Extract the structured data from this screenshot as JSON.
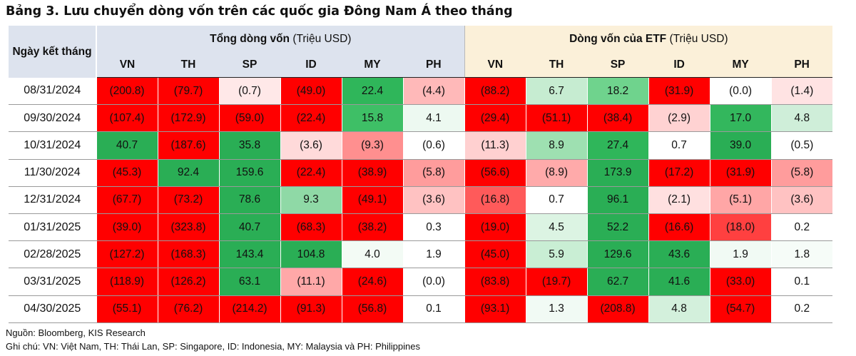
{
  "title": "Bảng 3. Lưu chuyển dòng vốn trên các quốc gia Đông Nam Á theo tháng",
  "header": {
    "date_col": "Ngày kết tháng",
    "group1": {
      "label": "Tổng dòng vốn",
      "unit": "(Triệu USD)"
    },
    "group2": {
      "label": "Dòng vốn của ETF",
      "unit": "(Triệu USD)"
    },
    "countries": [
      "VN",
      "TH",
      "SP",
      "ID",
      "MY",
      "PH"
    ]
  },
  "rows": [
    {
      "date": "08/31/2024",
      "total": [
        "(200.8)",
        "(79.7)",
        "(0.7)",
        "(49.0)",
        "22.4",
        "(4.4)"
      ],
      "total_bg": [
        "#ff0000",
        "#ff0000",
        "#ffe8e8",
        "#ff0000",
        "#2fb65a",
        "#ffb9b9"
      ],
      "etf": [
        "(88.2)",
        "6.7",
        "18.2",
        "(31.9)",
        "(0.0)",
        "(1.4)"
      ],
      "etf_bg": [
        "#ff0000",
        "#c6ecd1",
        "#6fd38d",
        "#ff0000",
        "#ffffff",
        "#ffe3e3"
      ]
    },
    {
      "date": "09/30/2024",
      "total": [
        "(107.4)",
        "(172.9)",
        "(59.0)",
        "(22.4)",
        "15.8",
        "4.1"
      ],
      "total_bg": [
        "#ff0000",
        "#ff0000",
        "#ff0000",
        "#ff0000",
        "#3ebf66",
        "#edf9f1"
      ],
      "etf": [
        "(29.4)",
        "(51.1)",
        "(38.4)",
        "(2.9)",
        "17.0",
        "4.8"
      ],
      "etf_bg": [
        "#ff0000",
        "#ff0000",
        "#ff0000",
        "#ffd2d2",
        "#33b75d",
        "#cfeed9"
      ]
    },
    {
      "date": "10/31/2024",
      "total": [
        "40.7",
        "(187.6)",
        "35.8",
        "(3.6)",
        "(9.3)",
        "(0.6)"
      ],
      "total_bg": [
        "#2aae55",
        "#ff0000",
        "#2aae55",
        "#ffdada",
        "#ff8f8f",
        "#ffffff"
      ],
      "etf": [
        "(11.3)",
        "8.9",
        "27.4",
        "0.7",
        "39.0",
        "(0.5)"
      ],
      "etf_bg": [
        "#ffd0d0",
        "#9ee0b1",
        "#2fb65a",
        "#ffffff",
        "#2aae55",
        "#ffffff"
      ]
    },
    {
      "date": "11/30/2024",
      "total": [
        "(45.3)",
        "92.4",
        "159.6",
        "(22.4)",
        "(38.9)",
        "(5.8)"
      ],
      "total_bg": [
        "#ff0000",
        "#2aae55",
        "#2aae55",
        "#ff0000",
        "#ff0000",
        "#ff9c9c"
      ],
      "etf": [
        "(56.6)",
        "(8.9)",
        "173.9",
        "(17.2)",
        "(31.9)",
        "(5.8)"
      ],
      "etf_bg": [
        "#ff0000",
        "#ffaaaa",
        "#2aae55",
        "#ff0000",
        "#ff0000",
        "#ff9c9c"
      ]
    },
    {
      "date": "12/31/2024",
      "total": [
        "(67.7)",
        "(73.2)",
        "78.6",
        "9.3",
        "(49.1)",
        "(3.6)"
      ],
      "total_bg": [
        "#ff0000",
        "#ff0000",
        "#2aae55",
        "#8fd9a6",
        "#ff0000",
        "#ffc2c2"
      ],
      "etf": [
        "(16.8)",
        "0.7",
        "96.1",
        "(2.1)",
        "(5.1)",
        "(3.6)"
      ],
      "etf_bg": [
        "#ff5a5a",
        "#ffffff",
        "#2aae55",
        "#ffe0e0",
        "#ffa6a6",
        "#ffc2c2"
      ]
    },
    {
      "date": "01/31/2025",
      "total": [
        "(39.0)",
        "(323.8)",
        "40.7",
        "(68.3)",
        "(38.2)",
        "0.3"
      ],
      "total_bg": [
        "#ff0000",
        "#ff0000",
        "#2aae55",
        "#ff0000",
        "#ff0000",
        "#ffffff"
      ],
      "etf": [
        "(19.0)",
        "4.5",
        "52.2",
        "(16.6)",
        "(18.0)",
        "0.2"
      ],
      "etf_bg": [
        "#ff0000",
        "#dcf4e3",
        "#2aae55",
        "#ff0000",
        "#ff4040",
        "#ffffff"
      ]
    },
    {
      "date": "02/28/2025",
      "total": [
        "(127.2)",
        "(168.3)",
        "143.4",
        "104.8",
        "4.0",
        "1.9"
      ],
      "total_bg": [
        "#ff0000",
        "#ff0000",
        "#2aae55",
        "#2aae55",
        "#f3fbf5",
        "#ffffff"
      ],
      "etf": [
        "(45.0)",
        "5.9",
        "129.6",
        "43.6",
        "1.9",
        "1.8"
      ],
      "etf_bg": [
        "#ff0000",
        "#c9eed4",
        "#2aae55",
        "#2aae55",
        "#f1faf4",
        "#f6fcf8"
      ]
    },
    {
      "date": "03/31/2025",
      "total": [
        "(118.9)",
        "(126.2)",
        "63.1",
        "(11.1)",
        "(24.6)",
        "(0.0)"
      ],
      "total_bg": [
        "#ff0000",
        "#ff0000",
        "#2aae55",
        "#ffa8a8",
        "#ff0000",
        "#ffffff"
      ],
      "etf": [
        "(83.8)",
        "(19.7)",
        "62.7",
        "41.6",
        "(33.0)",
        "0.1"
      ],
      "etf_bg": [
        "#ff0000",
        "#ff0000",
        "#2aae55",
        "#2aae55",
        "#ff0000",
        "#ffffff"
      ]
    },
    {
      "date": "04/30/2025",
      "total": [
        "(55.1)",
        "(76.2)",
        "(214.2)",
        "(91.3)",
        "(56.8)",
        "0.1"
      ],
      "total_bg": [
        "#ff0000",
        "#ff0000",
        "#ff0000",
        "#ff0000",
        "#ff0000",
        "#ffffff"
      ],
      "etf": [
        "(93.1)",
        "1.3",
        "(208.8)",
        "4.8",
        "(54.7)",
        "0.2"
      ],
      "etf_bg": [
        "#ff0000",
        "#f1faf4",
        "#ff0000",
        "#d3f0dc",
        "#ff0000",
        "#ffffff"
      ]
    }
  ],
  "footer": {
    "source": "Nguồn: Bloomberg, KIS Research",
    "note": "Ghi chú: VN: Việt Nam, TH: Thái Lan, SP: Singapore, ID: Indonesia, MY: Malaysia và PH: Philippines"
  }
}
